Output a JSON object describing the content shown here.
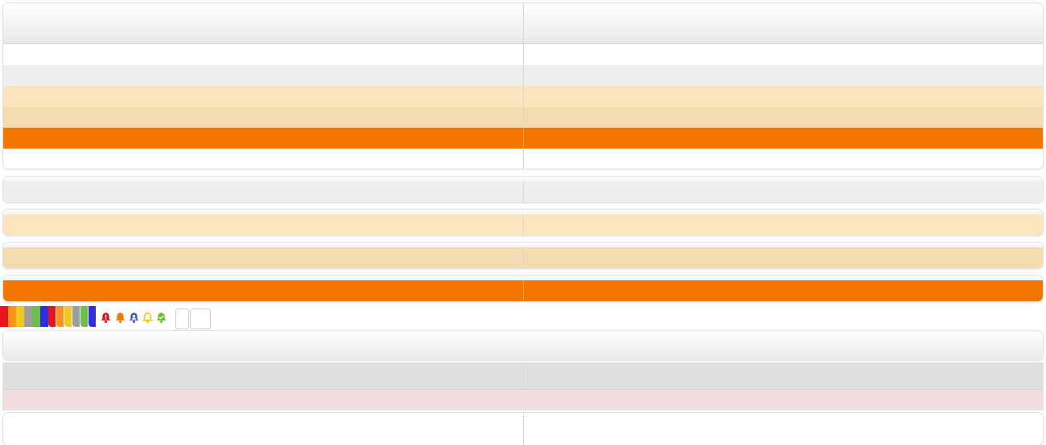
{
  "colors": {
    "header_gradient": [
      "#ffffff",
      "#e9e9e9"
    ],
    "row_white": "#ffffff",
    "row_gray": "#eeeeee",
    "row_peach": "#fce5bd",
    "row_tan": "#f3ddb0",
    "row_orange": "#f47500",
    "row_dark_gray": "#dfdfdf",
    "row_pink": "#f2dcdc"
  },
  "swatches": [
    "#e8151b",
    "#f7931e",
    "#f2c820",
    "#9e9e9e",
    "#6cc04a",
    "#2e2ee6"
  ],
  "tabs": [
    "#e8151b",
    "#f7931e",
    "#f2c820",
    "#9e9e9e",
    "#6cc04a",
    "#2e2ee6"
  ],
  "bells": [
    {
      "icon": "bell-alert-icon",
      "color": "#e01515"
    },
    {
      "icon": "bell-icon",
      "color": "#f07a00"
    },
    {
      "icon": "bell-user-icon",
      "color": "#3c5ad7"
    },
    {
      "icon": "bell-outline-icon",
      "color": "#f2c200"
    },
    {
      "icon": "bell-check-icon",
      "color": "#5fbf1e"
    }
  ]
}
